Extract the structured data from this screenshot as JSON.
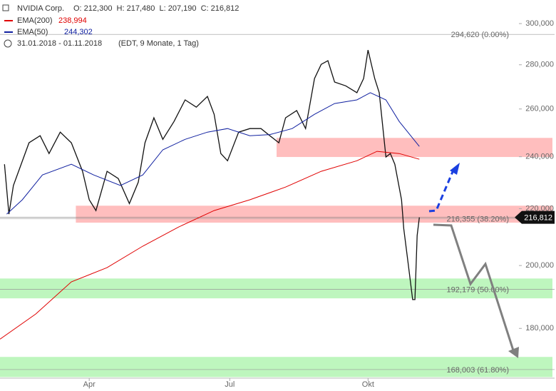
{
  "chart_data": {
    "type": "line",
    "title": "NVIDIA Corp.",
    "header": {
      "ohlc": "O: 212,300  H: 217,480  L: 207,190  C: 216,812",
      "range": "31.01.2018 - 01.11.2018",
      "info": "(EDT, 9 Monate, 1 Tag)"
    },
    "last_price": {
      "value": 216.812,
      "label": "216,812"
    },
    "log_scale": true,
    "xlim": [
      0,
      232
    ],
    "ylim": [
      165.6,
      312.1
    ],
    "xticks": [
      {
        "value": 40,
        "label": "Apr"
      },
      {
        "value": 103,
        "label": "Jul"
      },
      {
        "value": 165,
        "label": "Okt"
      }
    ],
    "yticks": [
      {
        "value": 180,
        "label": "180,000"
      },
      {
        "value": 200,
        "label": "200,000"
      },
      {
        "value": 220,
        "label": "220,000"
      },
      {
        "value": 240,
        "label": "240,000"
      },
      {
        "value": 260,
        "label": "260,000"
      },
      {
        "value": 280,
        "label": "280,000"
      },
      {
        "value": 300,
        "label": "300,000"
      }
    ],
    "series": [
      {
        "name": "NVIDIA Corp.",
        "color": "#111111",
        "x": [
          2,
          4,
          6,
          13,
          18,
          22,
          27,
          32,
          37,
          40,
          43,
          48,
          53,
          58,
          62,
          65,
          69,
          73,
          78,
          83,
          88,
          93,
          96,
          99,
          102,
          107,
          112,
          117,
          121,
          125,
          128,
          133,
          137,
          141,
          144,
          147,
          150,
          155,
          160,
          163,
          165,
          168,
          170,
          173,
          175,
          177,
          180,
          181,
          183,
          185,
          186,
          187,
          188
        ],
        "values": [
          237.0,
          218.0,
          228.7,
          245.7,
          248.6,
          241.3,
          250.1,
          245.7,
          234.2,
          223.3,
          219.3,
          234.2,
          231.4,
          221.9,
          230.0,
          245.7,
          256.2,
          247.1,
          254.6,
          264.0,
          260.8,
          265.5,
          257.7,
          241.3,
          238.4,
          250.1,
          251.6,
          251.6,
          248.6,
          245.7,
          256.2,
          259.3,
          251.6,
          273.6,
          280.2,
          281.9,
          272.0,
          270.3,
          267.2,
          273.6,
          287.0,
          273.6,
          267.2,
          239.9,
          241.3,
          237.0,
          223.3,
          212.8,
          200.5,
          188.9,
          188.9,
          210.3,
          216.8
        ]
      },
      {
        "name": "EMA(200)",
        "color": "#e00000",
        "last_label": "238,994",
        "x": [
          0,
          16,
          32,
          48,
          64,
          80,
          96,
          112,
          128,
          144,
          160,
          169,
          179,
          188
        ],
        "values": [
          176.8,
          184.4,
          194.6,
          199.3,
          206.6,
          213.3,
          219.3,
          223.3,
          228.1,
          234.2,
          238.4,
          242.2,
          241.3,
          239.0
        ]
      },
      {
        "name": "EMA(50)",
        "color": "#1020a0",
        "last_label": "244,302",
        "x": [
          3,
          10,
          19,
          32,
          42,
          54,
          64,
          73,
          83,
          93,
          102,
          112,
          121,
          131,
          141,
          150,
          160,
          166,
          173,
          179,
          188
        ],
        "values": [
          218.0,
          223.3,
          232.8,
          237.0,
          232.8,
          228.7,
          232.8,
          242.8,
          247.1,
          250.1,
          251.6,
          248.6,
          249.1,
          251.6,
          257.7,
          262.4,
          264.0,
          267.2,
          264.0,
          254.6,
          244.2
        ]
      }
    ],
    "zones": [
      {
        "color": "#ffb3b3",
        "x_start": 124,
        "range": [
          239.9,
          247.7
        ]
      },
      {
        "color": "#ffb3b3",
        "x_start": 34,
        "range": [
          214.9,
          221.1
        ]
      },
      {
        "color": "#b3f5b3",
        "x_start": 0,
        "range": [
          189.3,
          195.7
        ]
      },
      {
        "color": "#b3f5b3",
        "x_start": 0,
        "range": [
          165.9,
          171.6
        ]
      }
    ],
    "fib_levels": [
      {
        "value": 294.62,
        "label": "294,620 (0.00%)"
      },
      {
        "value": 216.355,
        "label": "216,355 (38.20%)"
      },
      {
        "value": 192.179,
        "label": "192,179 (50.00%)"
      },
      {
        "value": 168.003,
        "label": "168,003 (61.80%)"
      }
    ]
  }
}
